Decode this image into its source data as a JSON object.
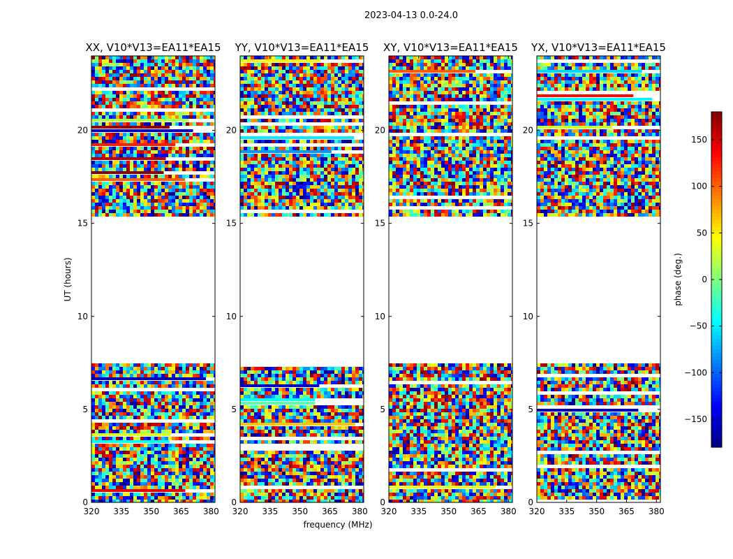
{
  "figure": {
    "title": "2023-04-13 0.0-24.0"
  },
  "chart_data": {
    "type": "heatmap",
    "xlabel": "frequency (MHz)",
    "ylabel": "UT (hours)",
    "xlim": [
      320,
      382
    ],
    "ylim": [
      0,
      24
    ],
    "xticks": [
      320,
      335,
      350,
      365,
      380
    ],
    "yticks": [
      0,
      5,
      10,
      15,
      20
    ],
    "panels": [
      {
        "title": "XX, V10*V13=EA11*EA15"
      },
      {
        "title": "YY, V10*V13=EA11*EA15"
      },
      {
        "title": "XY, V10*V13=EA11*EA15"
      },
      {
        "title": "YX, V10*V13=EA11*EA15"
      }
    ],
    "data_gap_hours": [
      7.6,
      15.2
    ],
    "colorbar": {
      "label": "phase (deg.)",
      "range": [
        -180,
        180
      ],
      "ticks": [
        -150,
        -100,
        -50,
        0,
        50,
        100,
        150
      ],
      "colormap": "jet"
    }
  }
}
